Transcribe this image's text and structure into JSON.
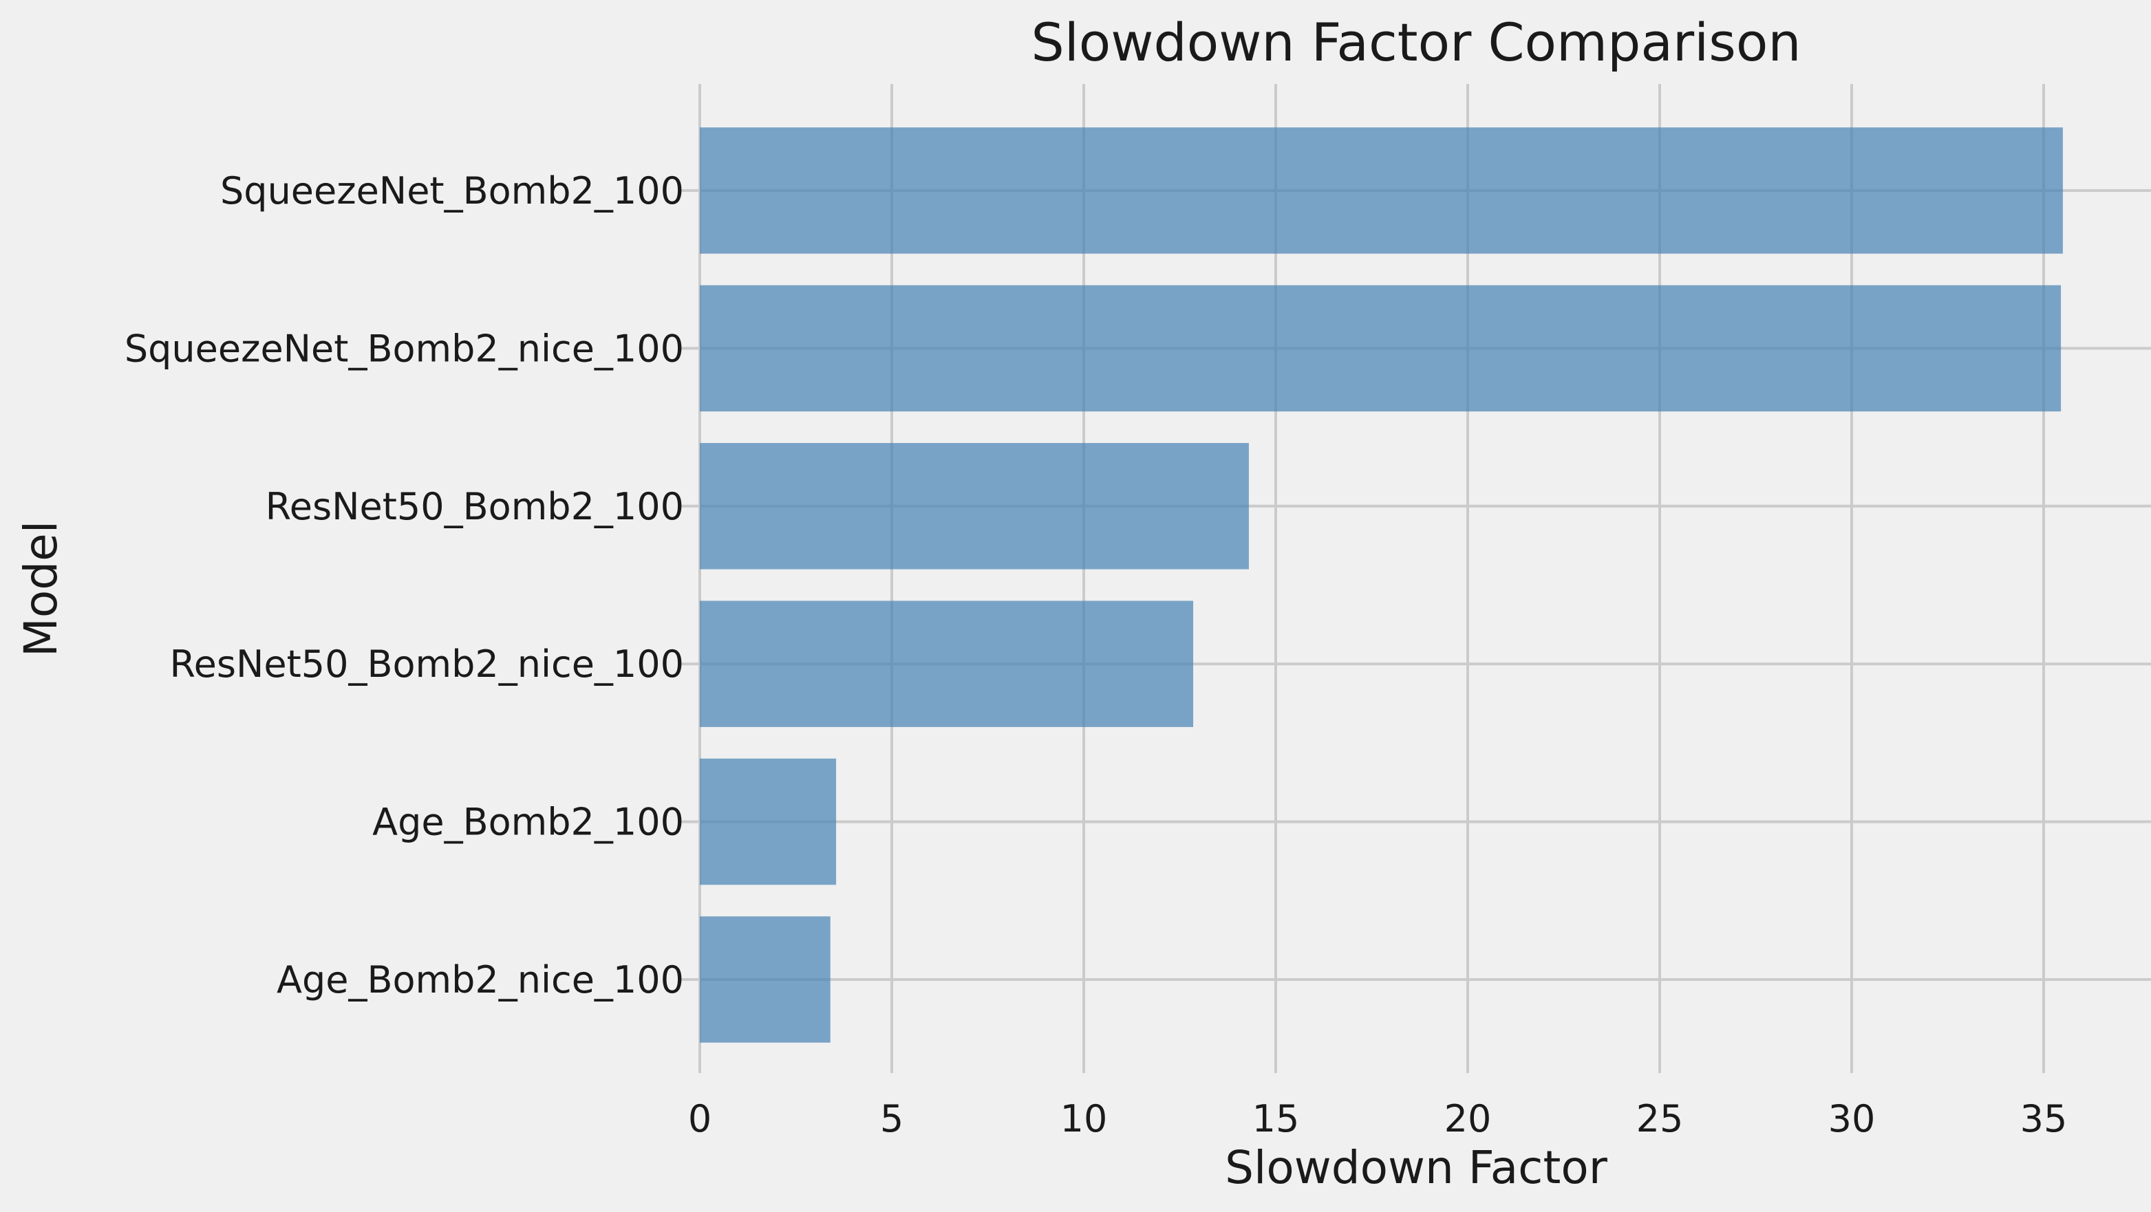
{
  "chart_data": {
    "type": "bar",
    "orientation": "horizontal",
    "title": "Slowdown Factor Comparison",
    "xlabel": "Slowdown Factor",
    "ylabel": "Model",
    "categories": [
      "SqueezeNet_Bomb2_100",
      "SqueezeNet_Bomb2_nice_100",
      "ResNet50_Bomb2_100",
      "ResNet50_Bomb2_nice_100",
      "Age_Bomb2_100",
      "Age_Bomb2_nice_100"
    ],
    "values": [
      35.5,
      35.45,
      14.3,
      12.85,
      3.55,
      3.4
    ],
    "xlim": [
      0,
      37.6
    ],
    "xticks": [
      0,
      5,
      10,
      15,
      20,
      25,
      30,
      35
    ],
    "grid": true,
    "bar_color": "#4682b4",
    "background_color": "#f0f0f0"
  }
}
